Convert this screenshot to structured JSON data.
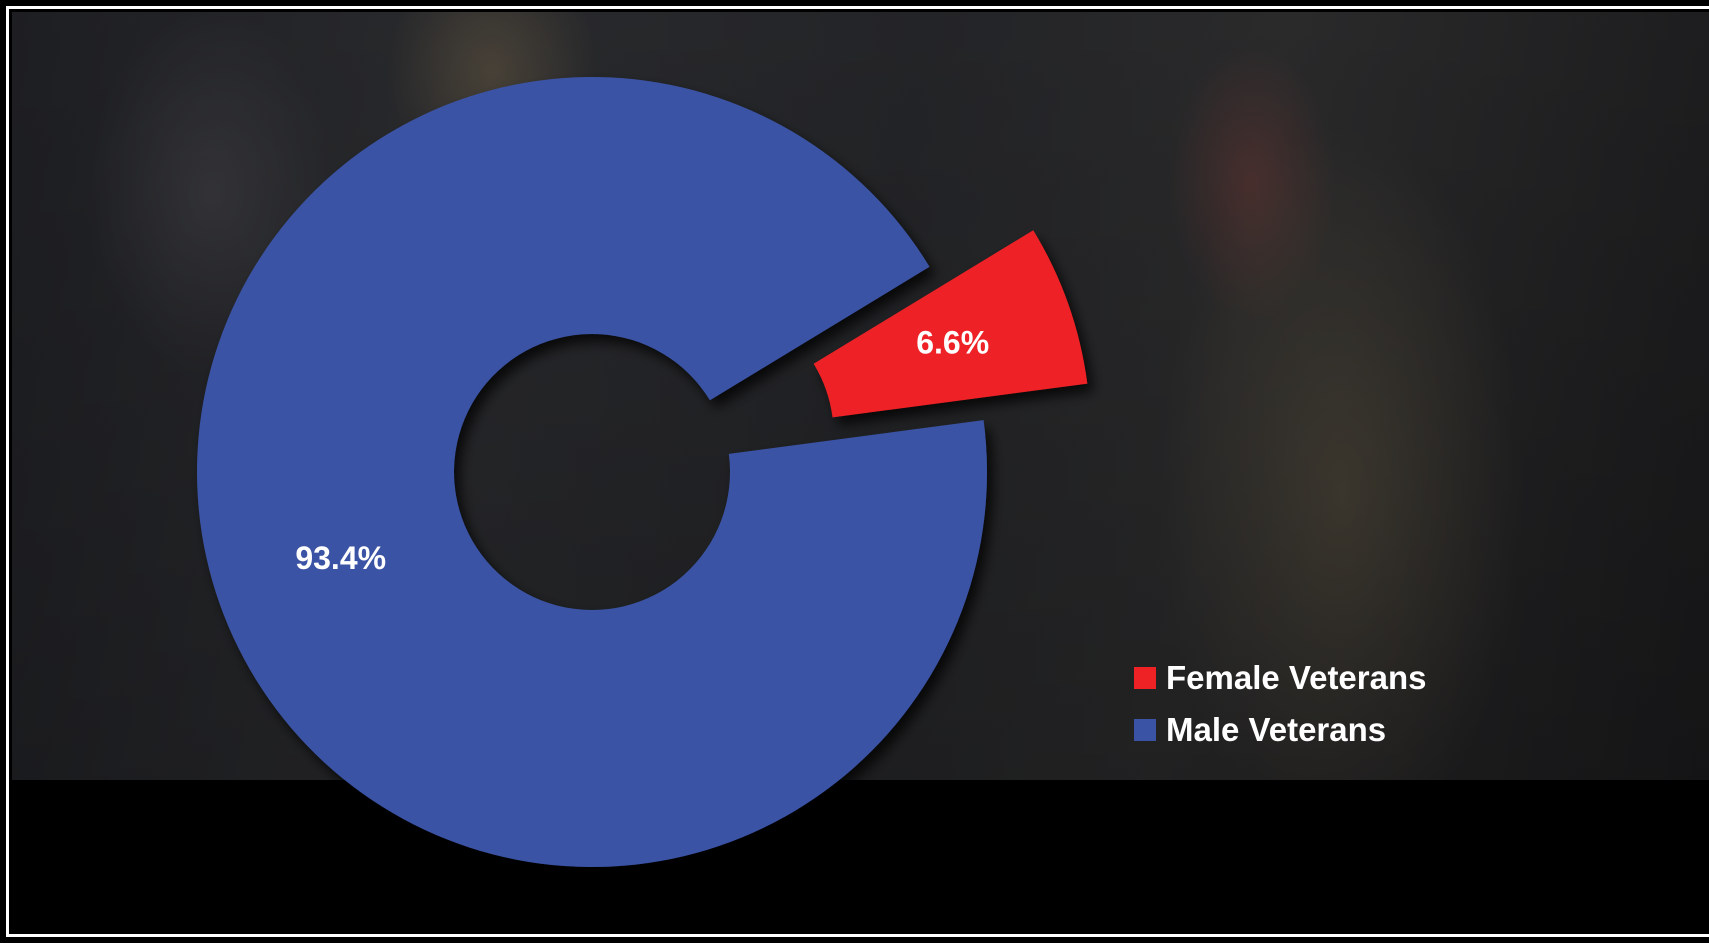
{
  "colors": {
    "female": "#ee2225",
    "male": "#3b53a4"
  },
  "chart_data": {
    "type": "pie",
    "variant": "donut",
    "title": "",
    "exploded_slice": "Female Veterans",
    "legend_position": "bottom-right",
    "slices": [
      {
        "name": "Female Veterans",
        "value": 6.6,
        "label": "6.6%",
        "color": "#ee2225"
      },
      {
        "name": "Male Veterans",
        "value": 93.4,
        "label": "93.4%",
        "color": "#3b53a4"
      }
    ],
    "legend": [
      {
        "name": "Female Veterans",
        "color": "#ee2225"
      },
      {
        "name": "Male Veterans",
        "color": "#3b53a4"
      }
    ]
  }
}
